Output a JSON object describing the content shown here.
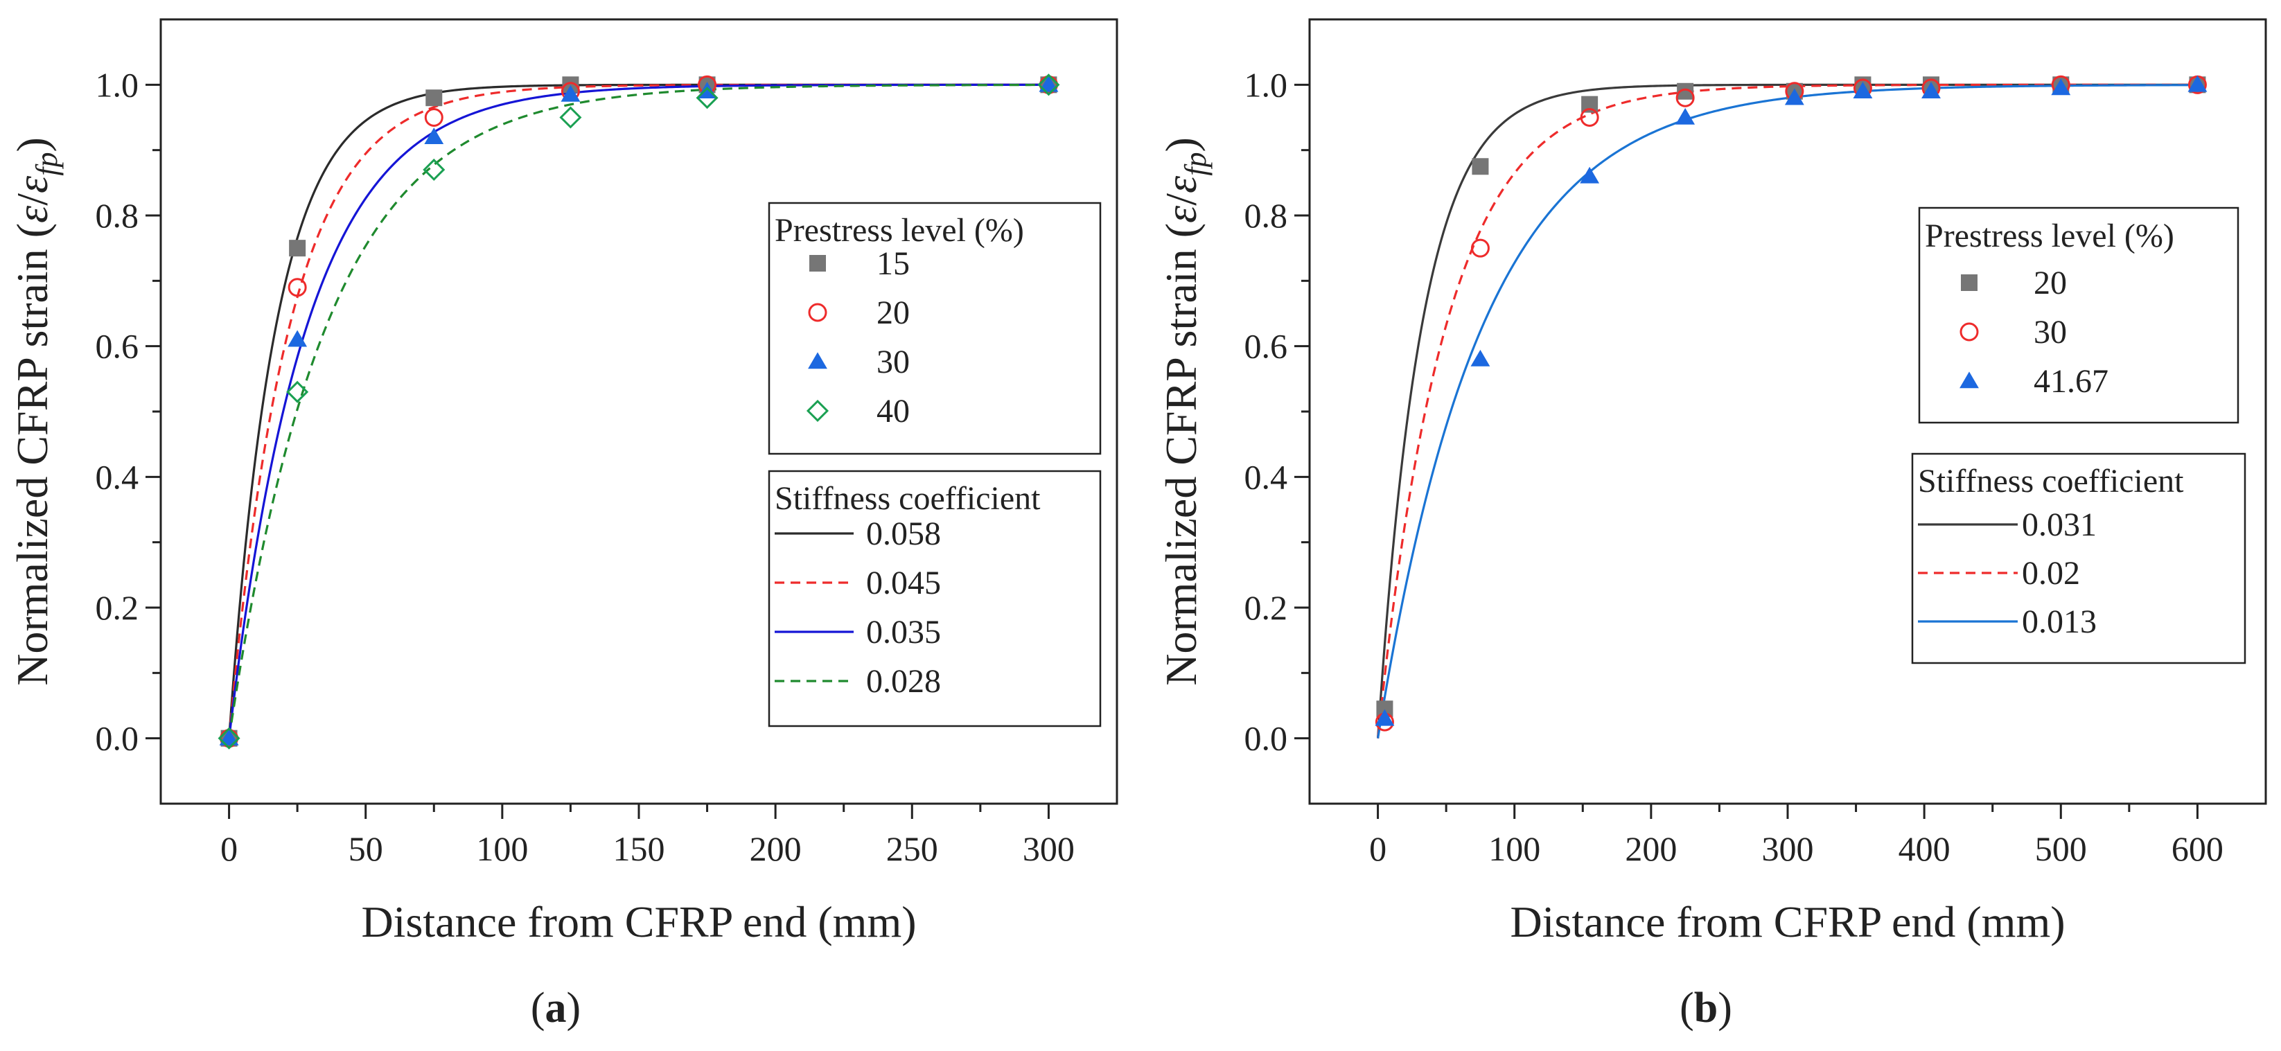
{
  "chart_data": [
    {
      "type": "scatter",
      "panel_label": "a",
      "xlabel": "Distance from CFRP end (mm)",
      "ylabel_prefix": "Normalized CFRP strain (",
      "ylabel_eps": "ε",
      "ylabel_slash": "/",
      "ylabel_sub": "fp",
      "ylabel_suffix": ")",
      "xlim": [
        -25,
        325
      ],
      "ylim": [
        -0.1,
        1.1
      ],
      "xticks": [
        0,
        50,
        100,
        150,
        200,
        250,
        300
      ],
      "yticks": [
        0.0,
        0.2,
        0.4,
        0.6,
        0.8,
        1.0
      ],
      "xtick_labels": [
        "0",
        "50",
        "100",
        "150",
        "200",
        "250",
        "300"
      ],
      "ytick_labels": [
        "0.0",
        "0.2",
        "0.4",
        "0.6",
        "0.8",
        "1.0"
      ],
      "legend_markers_title": "Prestress level (%)",
      "legend_lines_title": "Stiffness coefficient",
      "series": [
        {
          "name": "15",
          "marker": "square",
          "color": "#767676",
          "x": [
            0,
            25,
            75,
            125,
            175,
            300
          ],
          "y": [
            0,
            0.75,
            0.98,
            1.0,
            1.0,
            1.0
          ]
        },
        {
          "name": "20",
          "marker": "circle-open",
          "color": "#ee2b2b",
          "x": [
            0,
            25,
            75,
            125,
            175,
            300
          ],
          "y": [
            0,
            0.69,
            0.95,
            0.99,
            1.0,
            1.0
          ]
        },
        {
          "name": "30",
          "marker": "triangle",
          "color": "#1c68e0",
          "x": [
            0,
            25,
            75,
            125,
            175,
            300
          ],
          "y": [
            0,
            0.61,
            0.92,
            0.985,
            0.99,
            1.0
          ]
        },
        {
          "name": "40",
          "marker": "diamond-open",
          "color": "#1aa052",
          "x": [
            0,
            25,
            75,
            125,
            175,
            300
          ],
          "y": [
            0,
            0.53,
            0.87,
            0.95,
            0.98,
            1.0
          ]
        }
      ],
      "fits": [
        {
          "label": "0.058",
          "k": 0.058,
          "color": "#2b2b2b",
          "dash": "solid"
        },
        {
          "label": "0.045",
          "k": 0.045,
          "color": "#ee2b2b",
          "dash": "dashed"
        },
        {
          "label": "0.035",
          "k": 0.035,
          "color": "#1515d6",
          "dash": "solid"
        },
        {
          "label": "0.028",
          "k": 0.028,
          "color": "#1f8a2e",
          "dash": "dashed"
        }
      ]
    },
    {
      "type": "scatter",
      "panel_label": "b",
      "xlabel": "Distance from CFRP end (mm)",
      "ylabel_prefix": "Normalized CFRP strain (",
      "ylabel_eps": "ε",
      "ylabel_slash": "/",
      "ylabel_sub": "fp",
      "ylabel_suffix": ")",
      "xlim": [
        -50,
        650
      ],
      "ylim": [
        -0.1,
        1.1
      ],
      "xticks": [
        0,
        100,
        200,
        300,
        400,
        500,
        600
      ],
      "yticks": [
        0.0,
        0.2,
        0.4,
        0.6,
        0.8,
        1.0
      ],
      "xtick_labels": [
        "0",
        "100",
        "200",
        "300",
        "400",
        "500",
        "600"
      ],
      "ytick_labels": [
        "0.0",
        "0.2",
        "0.4",
        "0.6",
        "0.8",
        "1.0"
      ],
      "legend_markers_title": "Prestress level (%)",
      "legend_lines_title": "Stiffness coefficient",
      "series": [
        {
          "name": "20",
          "marker": "square",
          "color": "#767676",
          "x": [
            5,
            75,
            155,
            225,
            305,
            355,
            405,
            500,
            600
          ],
          "y": [
            0.045,
            0.875,
            0.97,
            0.99,
            0.99,
            1.0,
            1.0,
            1.0,
            1.0
          ]
        },
        {
          "name": "30",
          "marker": "circle-open",
          "color": "#ee2b2b",
          "x": [
            5,
            75,
            155,
            225,
            305,
            355,
            405,
            500,
            600
          ],
          "y": [
            0.025,
            0.75,
            0.95,
            0.98,
            0.99,
            0.995,
            0.995,
            1.0,
            1.0
          ]
        },
        {
          "name": "41.67",
          "marker": "triangle",
          "color": "#1c68e0",
          "x": [
            5,
            75,
            155,
            225,
            305,
            355,
            405,
            500,
            600
          ],
          "y": [
            0.03,
            0.58,
            0.86,
            0.95,
            0.98,
            0.99,
            0.99,
            0.995,
            1.0
          ]
        }
      ],
      "fits": [
        {
          "label": "0.031",
          "k": 0.031,
          "color": "#3a3a3a",
          "dash": "solid"
        },
        {
          "label": "0.02",
          "k": 0.02,
          "color": "#ee2b2b",
          "dash": "dashed"
        },
        {
          "label": "0.013",
          "k": 0.013,
          "color": "#1a74d4",
          "dash": "solid"
        }
      ]
    }
  ]
}
